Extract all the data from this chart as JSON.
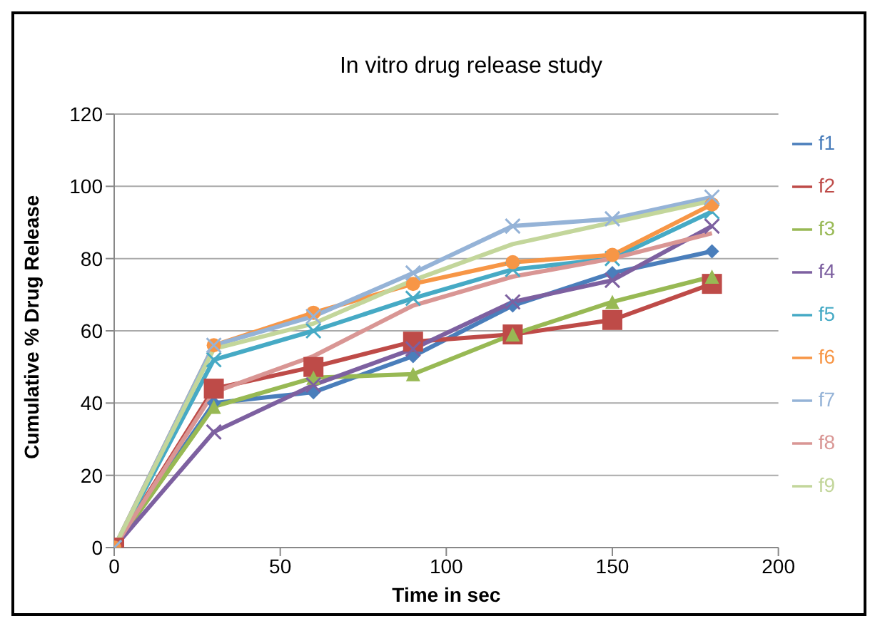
{
  "chart_data": {
    "type": "line",
    "title": "In vitro drug release study",
    "xlabel": "Time in sec",
    "ylabel": "Cumulative % Drug Release",
    "x": [
      0,
      30,
      60,
      90,
      120,
      150,
      180
    ],
    "series": [
      {
        "name": "f1",
        "color": "#4a7ebb",
        "marker": "diamond",
        "values": [
          0,
          40,
          43,
          53,
          67,
          76,
          82
        ]
      },
      {
        "name": "f2",
        "color": "#be4b48",
        "marker": "square",
        "values": [
          0,
          44,
          50,
          57,
          59,
          63,
          73
        ]
      },
      {
        "name": "f3",
        "color": "#98b954",
        "marker": "triangle",
        "values": [
          0,
          39,
          47,
          48,
          59,
          68,
          75
        ]
      },
      {
        "name": "f4",
        "color": "#7d60a0",
        "marker": "cross",
        "values": [
          0,
          32,
          45,
          55,
          68,
          74,
          89
        ]
      },
      {
        "name": "f5",
        "color": "#46aac5",
        "marker": "cross",
        "values": [
          0,
          52,
          60,
          69,
          77,
          80,
          93
        ]
      },
      {
        "name": "f6",
        "color": "#f79646",
        "marker": "circle",
        "values": [
          0,
          56,
          65,
          73,
          79,
          81,
          95
        ]
      },
      {
        "name": "f7",
        "color": "#95b3d7",
        "marker": "cross",
        "values": [
          0,
          56,
          64,
          76,
          89,
          91,
          97
        ]
      },
      {
        "name": "f8",
        "color": "#d99694",
        "marker": "none",
        "values": [
          0,
          43,
          53,
          67,
          75,
          80,
          87
        ]
      },
      {
        "name": "f9",
        "color": "#c3d69b",
        "marker": "none",
        "values": [
          0,
          55,
          62,
          74,
          84,
          90,
          96
        ]
      }
    ],
    "xlim": [
      0,
      200
    ],
    "xticks": [
      0,
      50,
      100,
      150,
      200
    ],
    "ylim": [
      0,
      120
    ],
    "yticks": [
      0,
      20,
      40,
      60,
      80,
      100,
      120
    ],
    "grid": "y",
    "legend": "right"
  }
}
